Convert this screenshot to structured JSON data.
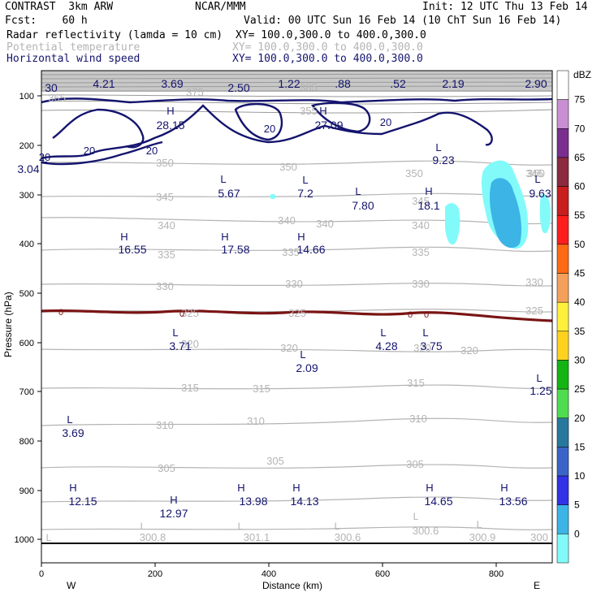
{
  "header": {
    "model": "CONTRAST  3km ARW",
    "org": "NCAR/MMM",
    "init": "Init: 12 UTC Thu 13 Feb 14",
    "fcst": "Fcst:    60 h",
    "valid": "Valid: 00 UTC Sun 16 Feb 14 (10 ChT Sun 16 Feb 14)",
    "fields": [
      {
        "name": "Radar reflectivity (lamda = 10 cm)",
        "xy": "XY= 100.0,300.0 to 400.0,300.0",
        "color": "#000000"
      },
      {
        "name": "Potential temperature",
        "xy": "XY= 100.0,300.0 to 400.0,300.0",
        "color": "#b4b4b4"
      },
      {
        "name": "Horizontal wind speed",
        "xy": "XY= 100.0,300.0 to 400.0,300.0",
        "color": "#14146e"
      }
    ]
  },
  "axes": {
    "ylabel": "Pressure (hPa)",
    "xlabel": "Distance (km)",
    "yticks": [
      "100",
      "200",
      "300",
      "400",
      "500",
      "600",
      "700",
      "800",
      "900",
      "1000"
    ],
    "xticks": [
      "0",
      "200",
      "400",
      "600",
      "800"
    ],
    "west": "W",
    "east": "E"
  },
  "colorbar": {
    "unit": "dBZ",
    "levels": [
      "75",
      "70",
      "65",
      "60",
      "55",
      "50",
      "45",
      "40",
      "35",
      "30",
      "25",
      "20",
      "15",
      "10",
      "5",
      "0"
    ],
    "colors": [
      "#ffffff",
      "#c890d2",
      "#7a2f8f",
      "#8c2a3e",
      "#c81e1e",
      "#ff1e1e",
      "#ff6a14",
      "#f5a05a",
      "#fff03c",
      "#ffd21e",
      "#14b414",
      "#50dc50",
      "#28789e",
      "#3c64c8",
      "#3232e6",
      "#3cb4e6",
      "#82fafa"
    ]
  },
  "wind_labels": [
    "20",
    "20",
    "20",
    "20",
    "20"
  ],
  "theta_labels": [
    "375",
    "365",
    "355",
    "350",
    "350",
    "350",
    "345",
    "345",
    "345",
    "340",
    "340",
    "340",
    "340",
    "335",
    "335",
    "335",
    "330",
    "330",
    "330",
    "330",
    "325",
    "325",
    "325",
    "320",
    "320",
    "320",
    "320",
    "315",
    "315",
    "315",
    "310",
    "310",
    "310",
    "305",
    "305",
    "305",
    "300.8",
    "301.1",
    "300.6",
    "300.6",
    "300.9",
    "300",
    "350",
    "385"
  ],
  "freezing_labels": [
    "0",
    "0",
    "0",
    "0"
  ],
  "hl_markers": [
    {
      "letter": "H",
      "value": "28.15"
    },
    {
      "letter": "H",
      "value": "27.09"
    },
    {
      "letter": "L",
      "value": "9.23"
    },
    {
      "letter": "L",
      "value": "5.67"
    },
    {
      "letter": "L",
      "value": "7.2"
    },
    {
      "letter": "L",
      "value": "7.80"
    },
    {
      "letter": "H",
      "value": "18.1"
    },
    {
      "letter": "L",
      "value": "9.63"
    },
    {
      "letter": "H",
      "value": "16.55"
    },
    {
      "letter": "H",
      "value": "17.58"
    },
    {
      "letter": "H",
      "value": "14.66"
    },
    {
      "letter": "L",
      "value": "3.71"
    },
    {
      "letter": "L",
      "value": "2.09"
    },
    {
      "letter": "L",
      "value": "4.28"
    },
    {
      "letter": "L",
      "value": "3.75"
    },
    {
      "letter": "L",
      "value": "1.25"
    },
    {
      "letter": "L",
      "value": "3.69"
    },
    {
      "letter": "H",
      "value": "12.15"
    },
    {
      "letter": "H",
      "value": "12.97"
    },
    {
      "letter": "H",
      "value": "13.98"
    },
    {
      "letter": "H",
      "value": "14.13"
    },
    {
      "letter": "H",
      "value": "14.65"
    },
    {
      "letter": "H",
      "value": "13.56"
    },
    {
      "letter": "L",
      "value": "3.04"
    }
  ],
  "top_values": [
    "30",
    "4.21",
    "3.69",
    "2.50",
    "1.22",
    ".88",
    ".52",
    "2.19",
    "2.90"
  ],
  "surface_L": [
    "L",
    "L",
    "L",
    "L",
    "L",
    "L"
  ]
}
